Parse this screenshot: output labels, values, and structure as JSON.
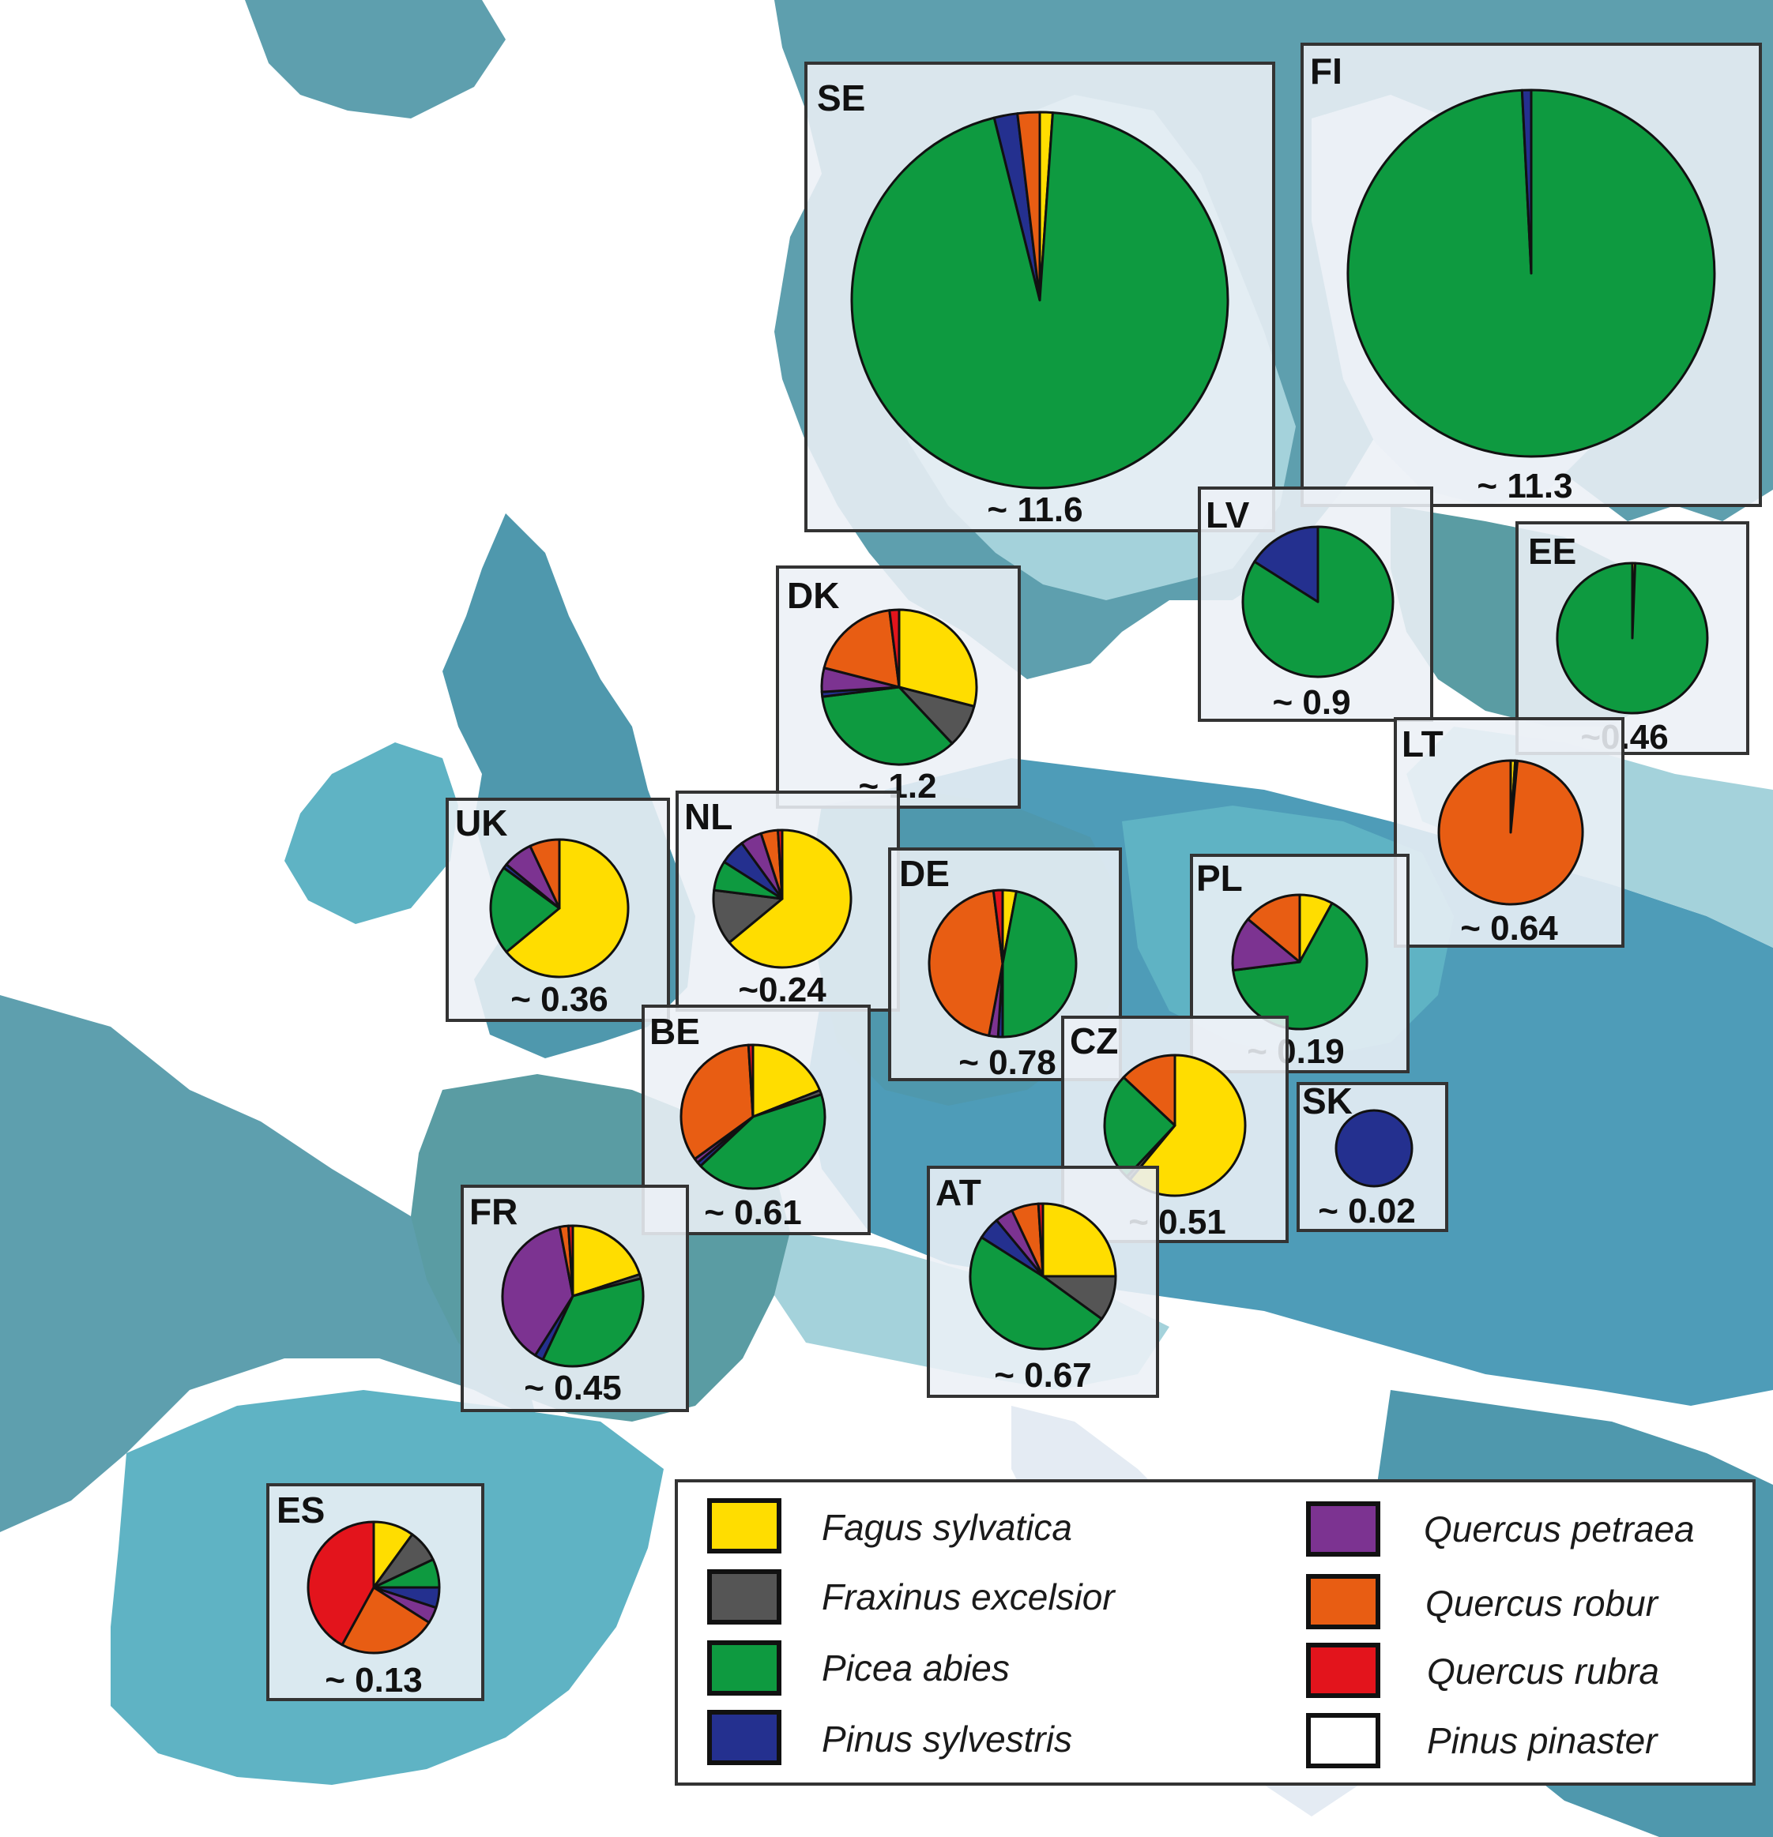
{
  "colors": {
    "Fagus sylvatica": "#ffdd00",
    "Fraxinus excelsior": "#555555",
    "Picea abies": "#0e9a40",
    "Pinus sylvestris": "#24308f",
    "Quercus petraea": "#7c3391",
    "Quercus robur": "#e85d13",
    "Quercus rubra": "#e3141c",
    "Pinus pinaster": "#ffffff"
  },
  "map": {
    "land_color": "#ffffff",
    "sea_color": "#5e9fae",
    "country_shades": [
      "#4f98ad",
      "#5fb3c4",
      "#a4d2db",
      "#e4ebf3",
      "#5a9ca3",
      "#4e9cb8"
    ]
  },
  "legend": {
    "items": [
      {
        "label": "Fagus sylvatica",
        "species": "Fagus sylvatica"
      },
      {
        "label": "Fraxinus excelsior",
        "species": "Fraxinus excelsior"
      },
      {
        "label": "Picea abies",
        "species": "Picea abies"
      },
      {
        "label": "Pinus sylvestris",
        "species": "Pinus sylvestris"
      },
      {
        "label": "Quercus petraea",
        "species": "Quercus petraea"
      },
      {
        "label": "Quercus robur",
        "species": "Quercus robur"
      },
      {
        "label": "Quercus rubra",
        "species": "Quercus rubra"
      },
      {
        "label": "Pinus pinaster",
        "species": "Pinus pinaster"
      }
    ]
  },
  "chart_data": {
    "type": "pie",
    "species": [
      "Fagus sylvatica",
      "Fraxinus excelsior",
      "Picea abies",
      "Pinus sylvestris",
      "Quercus petraea",
      "Quercus robur",
      "Quercus rubra",
      "Pinus pinaster"
    ],
    "countries": [
      {
        "code": "SE",
        "label": "~ 11.6",
        "total": 11.6,
        "slices": [
          {
            "species": "Fagus sylvatica",
            "share": 1.1
          },
          {
            "species": "Picea abies",
            "share": 95.0
          },
          {
            "species": "Pinus sylvestris",
            "share": 2.0
          },
          {
            "species": "Quercus robur",
            "share": 1.9
          }
        ]
      },
      {
        "code": "FI",
        "label": "~ 11.3",
        "total": 11.3,
        "slices": [
          {
            "species": "Picea abies",
            "share": 99.2
          },
          {
            "species": "Pinus sylvestris",
            "share": 0.8
          }
        ]
      },
      {
        "code": "LV",
        "label": "~ 0.9",
        "total": 0.9,
        "slices": [
          {
            "species": "Picea abies",
            "share": 84
          },
          {
            "species": "Pinus sylvestris",
            "share": 16
          }
        ]
      },
      {
        "code": "EE",
        "label": "~0.46",
        "total": 0.46,
        "slices": [
          {
            "species": "Fagus sylvatica",
            "share": 0.6
          },
          {
            "species": "Picea abies",
            "share": 99.4
          }
        ]
      },
      {
        "code": "DK",
        "label": "~ 1.2",
        "total": 1.2,
        "slices": [
          {
            "species": "Fagus sylvatica",
            "share": 29
          },
          {
            "species": "Fraxinus excelsior",
            "share": 9
          },
          {
            "species": "Picea abies",
            "share": 35
          },
          {
            "species": "Pinus sylvestris",
            "share": 1
          },
          {
            "species": "Quercus petraea",
            "share": 5
          },
          {
            "species": "Quercus robur",
            "share": 19
          },
          {
            "species": "Quercus rubra",
            "share": 2
          }
        ]
      },
      {
        "code": "LT",
        "label": "~ 0.64",
        "total": 0.64,
        "slices": [
          {
            "species": "Fagus sylvatica",
            "share": 1
          },
          {
            "species": "Picea abies",
            "share": 0.5
          },
          {
            "species": "Quercus robur",
            "share": 98.5
          }
        ]
      },
      {
        "code": "UK",
        "label": "~ 0.36",
        "total": 0.36,
        "slices": [
          {
            "species": "Fagus sylvatica",
            "share": 64
          },
          {
            "species": "Picea abies",
            "share": 21
          },
          {
            "species": "Pinus sylvestris",
            "share": 1
          },
          {
            "species": "Quercus petraea",
            "share": 7
          },
          {
            "species": "Quercus robur",
            "share": 7
          }
        ]
      },
      {
        "code": "NL",
        "label": "~0.24",
        "total": 0.24,
        "slices": [
          {
            "species": "Fagus sylvatica",
            "share": 64
          },
          {
            "species": "Fraxinus excelsior",
            "share": 13
          },
          {
            "species": "Picea abies",
            "share": 7
          },
          {
            "species": "Pinus sylvestris",
            "share": 6
          },
          {
            "species": "Quercus petraea",
            "share": 5
          },
          {
            "species": "Quercus robur",
            "share": 4
          },
          {
            "species": "Quercus rubra",
            "share": 1
          }
        ]
      },
      {
        "code": "DE",
        "label": "~ 0.78",
        "total": 0.78,
        "slices": [
          {
            "species": "Fagus sylvatica",
            "share": 3
          },
          {
            "species": "Picea abies",
            "share": 47
          },
          {
            "species": "Quercus rubra",
            "share": 2
          },
          {
            "species": "Quercus robur",
            "share": 45
          },
          {
            "species": "Pinus sylvestris",
            "share": 1
          },
          {
            "species": "Quercus petraea",
            "share": 2
          }
        ]
      },
      {
        "code": "PL",
        "label": "~ 0.19",
        "total": 0.19,
        "slices": [
          {
            "species": "Quercus robur",
            "share": 14
          },
          {
            "species": "Quercus petraea",
            "share": 13
          },
          {
            "species": "Picea abies",
            "share": 65
          },
          {
            "species": "Fagus sylvatica",
            "share": 8
          }
        ]
      },
      {
        "code": "BE",
        "label": "~ 0.61",
        "total": 0.61,
        "slices": [
          {
            "species": "Fagus sylvatica",
            "share": 19
          },
          {
            "species": "Fraxinus excelsior",
            "share": 1
          },
          {
            "species": "Picea abies",
            "share": 43
          },
          {
            "species": "Pinus sylvestris",
            "share": 1
          },
          {
            "species": "Quercus robur",
            "share": 34
          },
          {
            "species": "Quercus petraea",
            "share": 1
          },
          {
            "species": "Quercus rubra",
            "share": 1
          }
        ]
      },
      {
        "code": "CZ",
        "label": "~ 0.51",
        "total": 0.51,
        "slices": [
          {
            "species": "Fagus sylvatica",
            "share": 61
          },
          {
            "species": "Fraxinus excelsior",
            "share": 1
          },
          {
            "species": "Picea abies",
            "share": 25
          },
          {
            "species": "Quercus robur",
            "share": 13
          }
        ]
      },
      {
        "code": "SK",
        "label": "~ 0.02",
        "total": 0.02,
        "slices": [
          {
            "species": "Pinus sylvestris",
            "share": 100
          }
        ]
      },
      {
        "code": "AT",
        "label": "~ 0.67",
        "total": 0.67,
        "slices": [
          {
            "species": "Fagus sylvatica",
            "share": 25
          },
          {
            "species": "Fraxinus excelsior",
            "share": 10
          },
          {
            "species": "Picea abies",
            "share": 49
          },
          {
            "species": "Pinus sylvestris",
            "share": 5
          },
          {
            "species": "Quercus petraea",
            "share": 4
          },
          {
            "species": "Quercus robur",
            "share": 6
          },
          {
            "species": "Quercus rubra",
            "share": 1
          }
        ]
      },
      {
        "code": "FR",
        "label": "~ 0.45",
        "total": 0.45,
        "slices": [
          {
            "species": "Fagus sylvatica",
            "share": 20
          },
          {
            "species": "Fraxinus excelsior",
            "share": 1
          },
          {
            "species": "Picea abies",
            "share": 36
          },
          {
            "species": "Pinus sylvestris",
            "share": 2
          },
          {
            "species": "Quercus petraea",
            "share": 38
          },
          {
            "species": "Quercus robur",
            "share": 2
          },
          {
            "species": "Quercus rubra",
            "share": 1
          }
        ]
      },
      {
        "code": "ES",
        "label": "~ 0.13",
        "total": 0.13,
        "slices": [
          {
            "species": "Fagus sylvatica",
            "share": 10
          },
          {
            "species": "Fraxinus excelsior",
            "share": 8
          },
          {
            "species": "Picea abies",
            "share": 7
          },
          {
            "species": "Pinus sylvestris",
            "share": 5
          },
          {
            "species": "Quercus petraea",
            "share": 4
          },
          {
            "species": "Quercus robur",
            "share": 24
          },
          {
            "species": "Quercus rubra",
            "share": 42
          }
        ]
      }
    ]
  }
}
